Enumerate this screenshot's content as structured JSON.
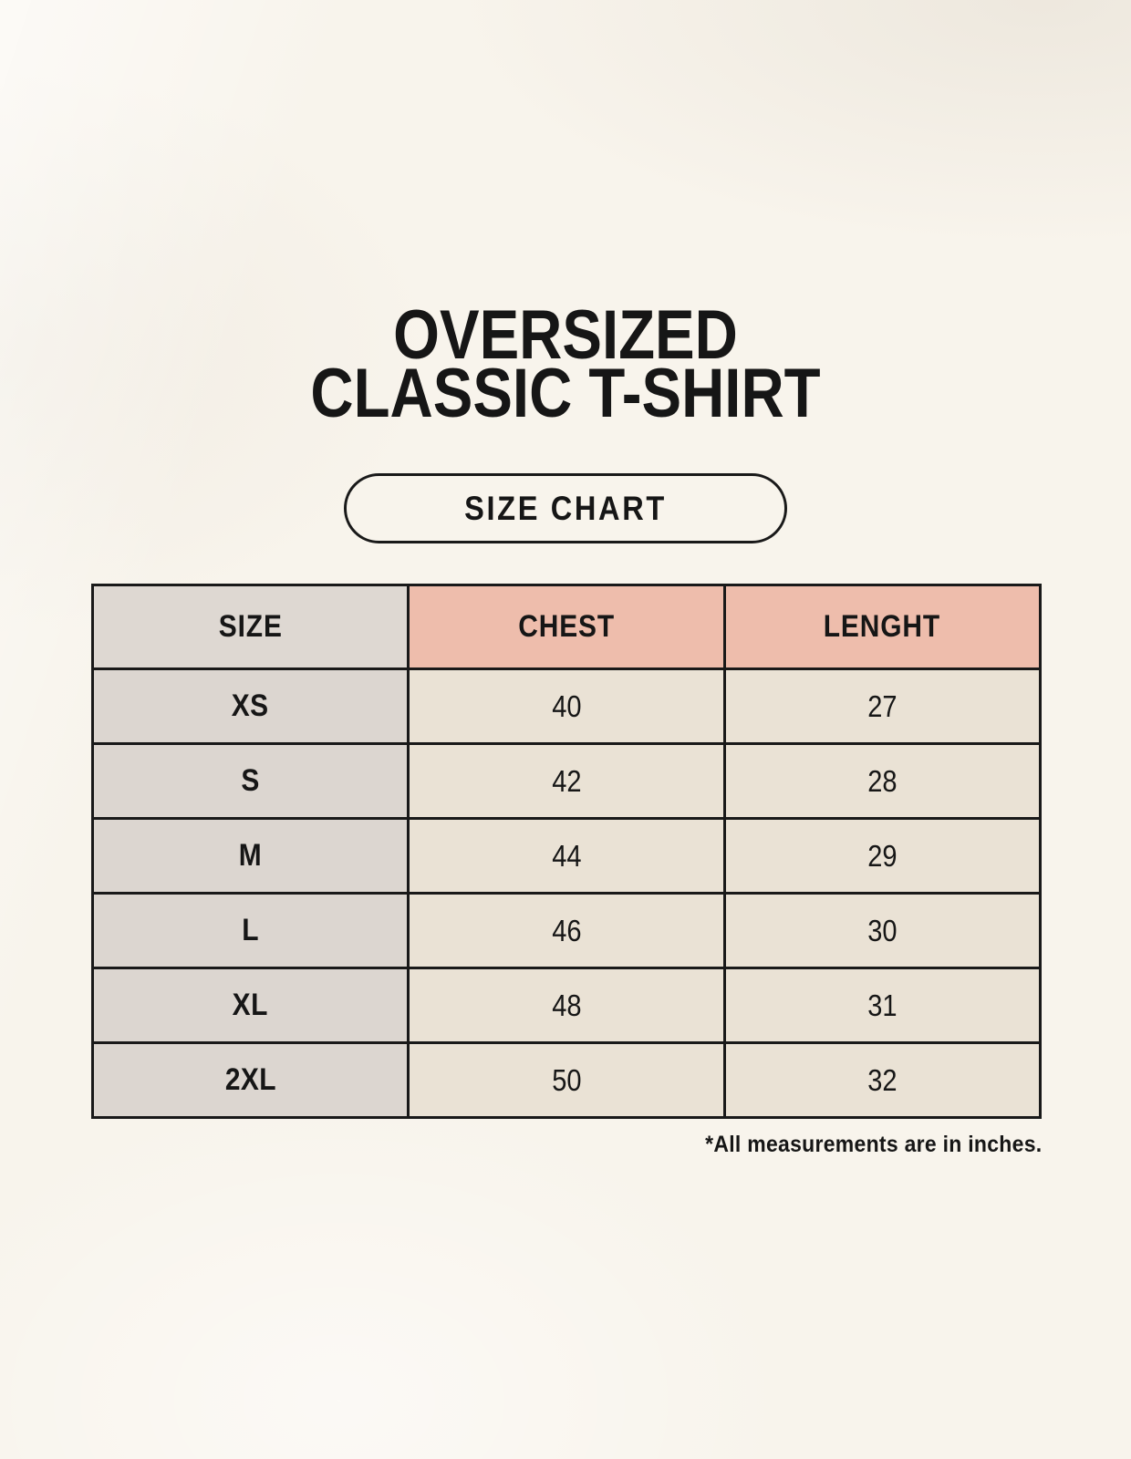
{
  "header": {
    "title_line1": "OVERSIZED",
    "title_line2": "CLASSIC T-SHIRT",
    "badge_label": "SIZE CHART"
  },
  "footnote": {
    "text": "*All measurements are in inches."
  },
  "colors": {
    "page_background": "#f8f4ec",
    "size_header_bg": "#ded8d2",
    "measure_header_bg": "#eebdac",
    "size_label_cell_bg": "#dcd6d0",
    "value_cell_bg": "#eae2d5",
    "table_border": "#191919",
    "text": "#161616"
  },
  "chart_data": {
    "type": "table",
    "title": "OVERSIZED CLASSIC T-SHIRT",
    "subtitle": "SIZE CHART",
    "columns": [
      "SIZE",
      "CHEST",
      "LENGHT"
    ],
    "rows": [
      [
        "XS",
        "40",
        "27"
      ],
      [
        "S",
        "42",
        "28"
      ],
      [
        "M",
        "44",
        "29"
      ],
      [
        "L",
        "46",
        "30"
      ],
      [
        "XL",
        "48",
        "31"
      ],
      [
        "2XL",
        "50",
        "32"
      ]
    ],
    "note": "*All measurements are in inches.",
    "units": "inches"
  }
}
